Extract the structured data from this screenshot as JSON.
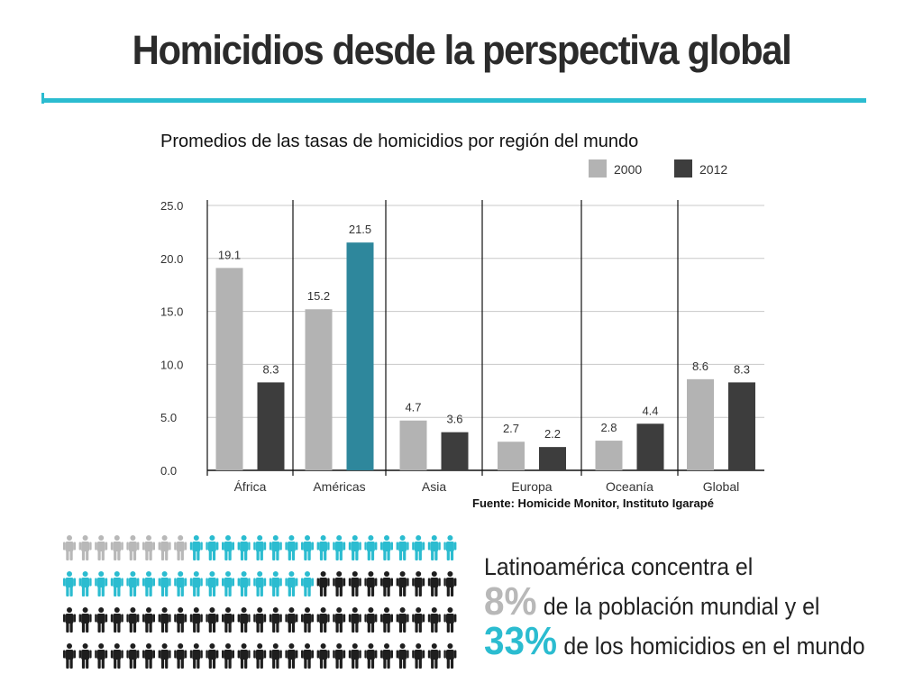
{
  "slide": {
    "title": "Homicidios desde la perspectiva global"
  },
  "chart_data": {
    "type": "bar",
    "title": "Promedios de las tasas de homicidios por región del mundo",
    "categories": [
      "África",
      "Américas",
      "Asia",
      "Europa",
      "Oceanía",
      "Global"
    ],
    "series": [
      {
        "name": "2000",
        "values": [
          19.1,
          15.2,
          4.7,
          2.7,
          2.8,
          8.6
        ],
        "color": "#b3b3b3"
      },
      {
        "name": "2012",
        "values": [
          8.3,
          21.5,
          3.6,
          2.2,
          4.4,
          8.3
        ],
        "color": "#3d3d3d"
      }
    ],
    "highlight": {
      "category": "Américas",
      "series": "2012",
      "color": "#2e879c"
    },
    "yticks": [
      "0.0",
      "5.0",
      "10.0",
      "15.0",
      "20.0",
      "25.0"
    ],
    "ylim": [
      0,
      25
    ],
    "grid": true,
    "legend_position": "top-right",
    "source": "Fuente: Homicide Monitor, Instituto Igarapé"
  },
  "infographic": {
    "figure_rows": 4,
    "figure_cols": 25,
    "gray_count": 8,
    "cyan_count": 33,
    "colors": {
      "gray": "#b8b8b8",
      "cyan": "#2bbcd0",
      "black": "#1e1e1e"
    },
    "icon": "person-icon",
    "line1": "Latinoamérica concentra el",
    "pct_population": "8%",
    "text_population": "de la población mundial y el",
    "pct_homicides": "33%",
    "text_homicides": "de los homicidios en el mundo"
  }
}
